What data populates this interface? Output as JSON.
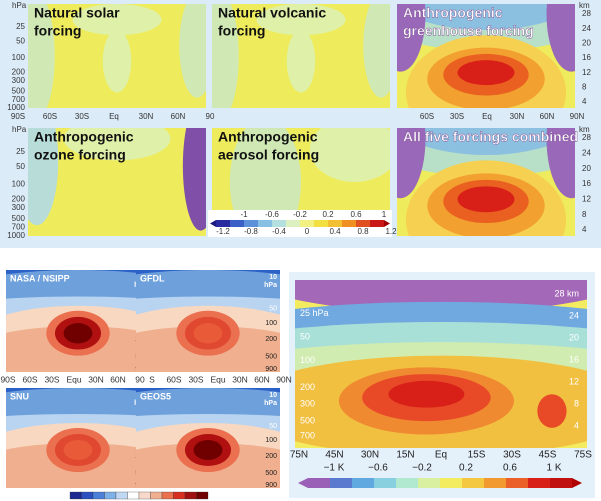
{
  "top": {
    "y_label": "hPa",
    "y2_label": "km",
    "pressure_ticks": [
      "25",
      "50",
      "100",
      "200",
      "300",
      "500",
      "700",
      "1000"
    ],
    "km_ticks": [
      "28",
      "24",
      "20",
      "16",
      "12",
      "8",
      "4"
    ],
    "x_ticks_left": [
      "90S",
      "60S",
      "30S",
      "Eq",
      "30N",
      "60N",
      "90"
    ],
    "x_ticks_right": [
      "60S",
      "30S",
      "Eq",
      "30N",
      "60N",
      "90N"
    ],
    "panels": [
      {
        "title": [
          "Natural solar",
          "forcing"
        ]
      },
      {
        "title": [
          "Natural volcanic",
          "forcing"
        ]
      },
      {
        "title": [
          "Anthropogenic",
          "greenhouse forcing"
        ]
      },
      {
        "title": [
          "Anthropogenic",
          "ozone forcing"
        ]
      },
      {
        "title": [
          "Anthropogenic",
          "aerosol forcing"
        ]
      },
      {
        "title": [
          "All five forcings combined"
        ]
      }
    ],
    "colorbar": {
      "upper": [
        "-1",
        "-0.6",
        "-0.2",
        "0.2",
        "0.6",
        "1"
      ],
      "lower": [
        "-1.2",
        "-0.8",
        "-0.4",
        "0",
        "0.4",
        "0.8",
        "1.2"
      ]
    }
  },
  "bottom_left": {
    "panels": [
      {
        "title": "NASA / NSIPP"
      },
      {
        "title": "GFDL"
      },
      {
        "title": "SNU"
      },
      {
        "title": "GEOS5"
      }
    ],
    "top_label": [
      "10",
      "hPa"
    ],
    "pressure_ticks": [
      "50",
      "100",
      "200",
      "500",
      "900"
    ],
    "x_ticks_left": [
      "90S",
      "60S",
      "30S",
      "Equ",
      "30N",
      "60N",
      "90"
    ],
    "x_ticks_right": [
      "S",
      "60S",
      "30S",
      "Equ",
      "30N",
      "60N",
      "90N"
    ]
  },
  "bottom_right": {
    "pressure_labels": [
      "25 hPa",
      "50",
      "100",
      "200",
      "300",
      "500",
      "700"
    ],
    "km_labels": [
      "28 km",
      "24",
      "20",
      "16",
      "12",
      "8",
      "4"
    ],
    "x_ticks": [
      "75N",
      "45N",
      "30N",
      "15N",
      "Eq",
      "15S",
      "30S",
      "45S",
      "75S"
    ],
    "colorbar": [
      "−1 K",
      "−0.6",
      "−0.2",
      "0.2",
      "0.6",
      "1 K"
    ]
  }
}
